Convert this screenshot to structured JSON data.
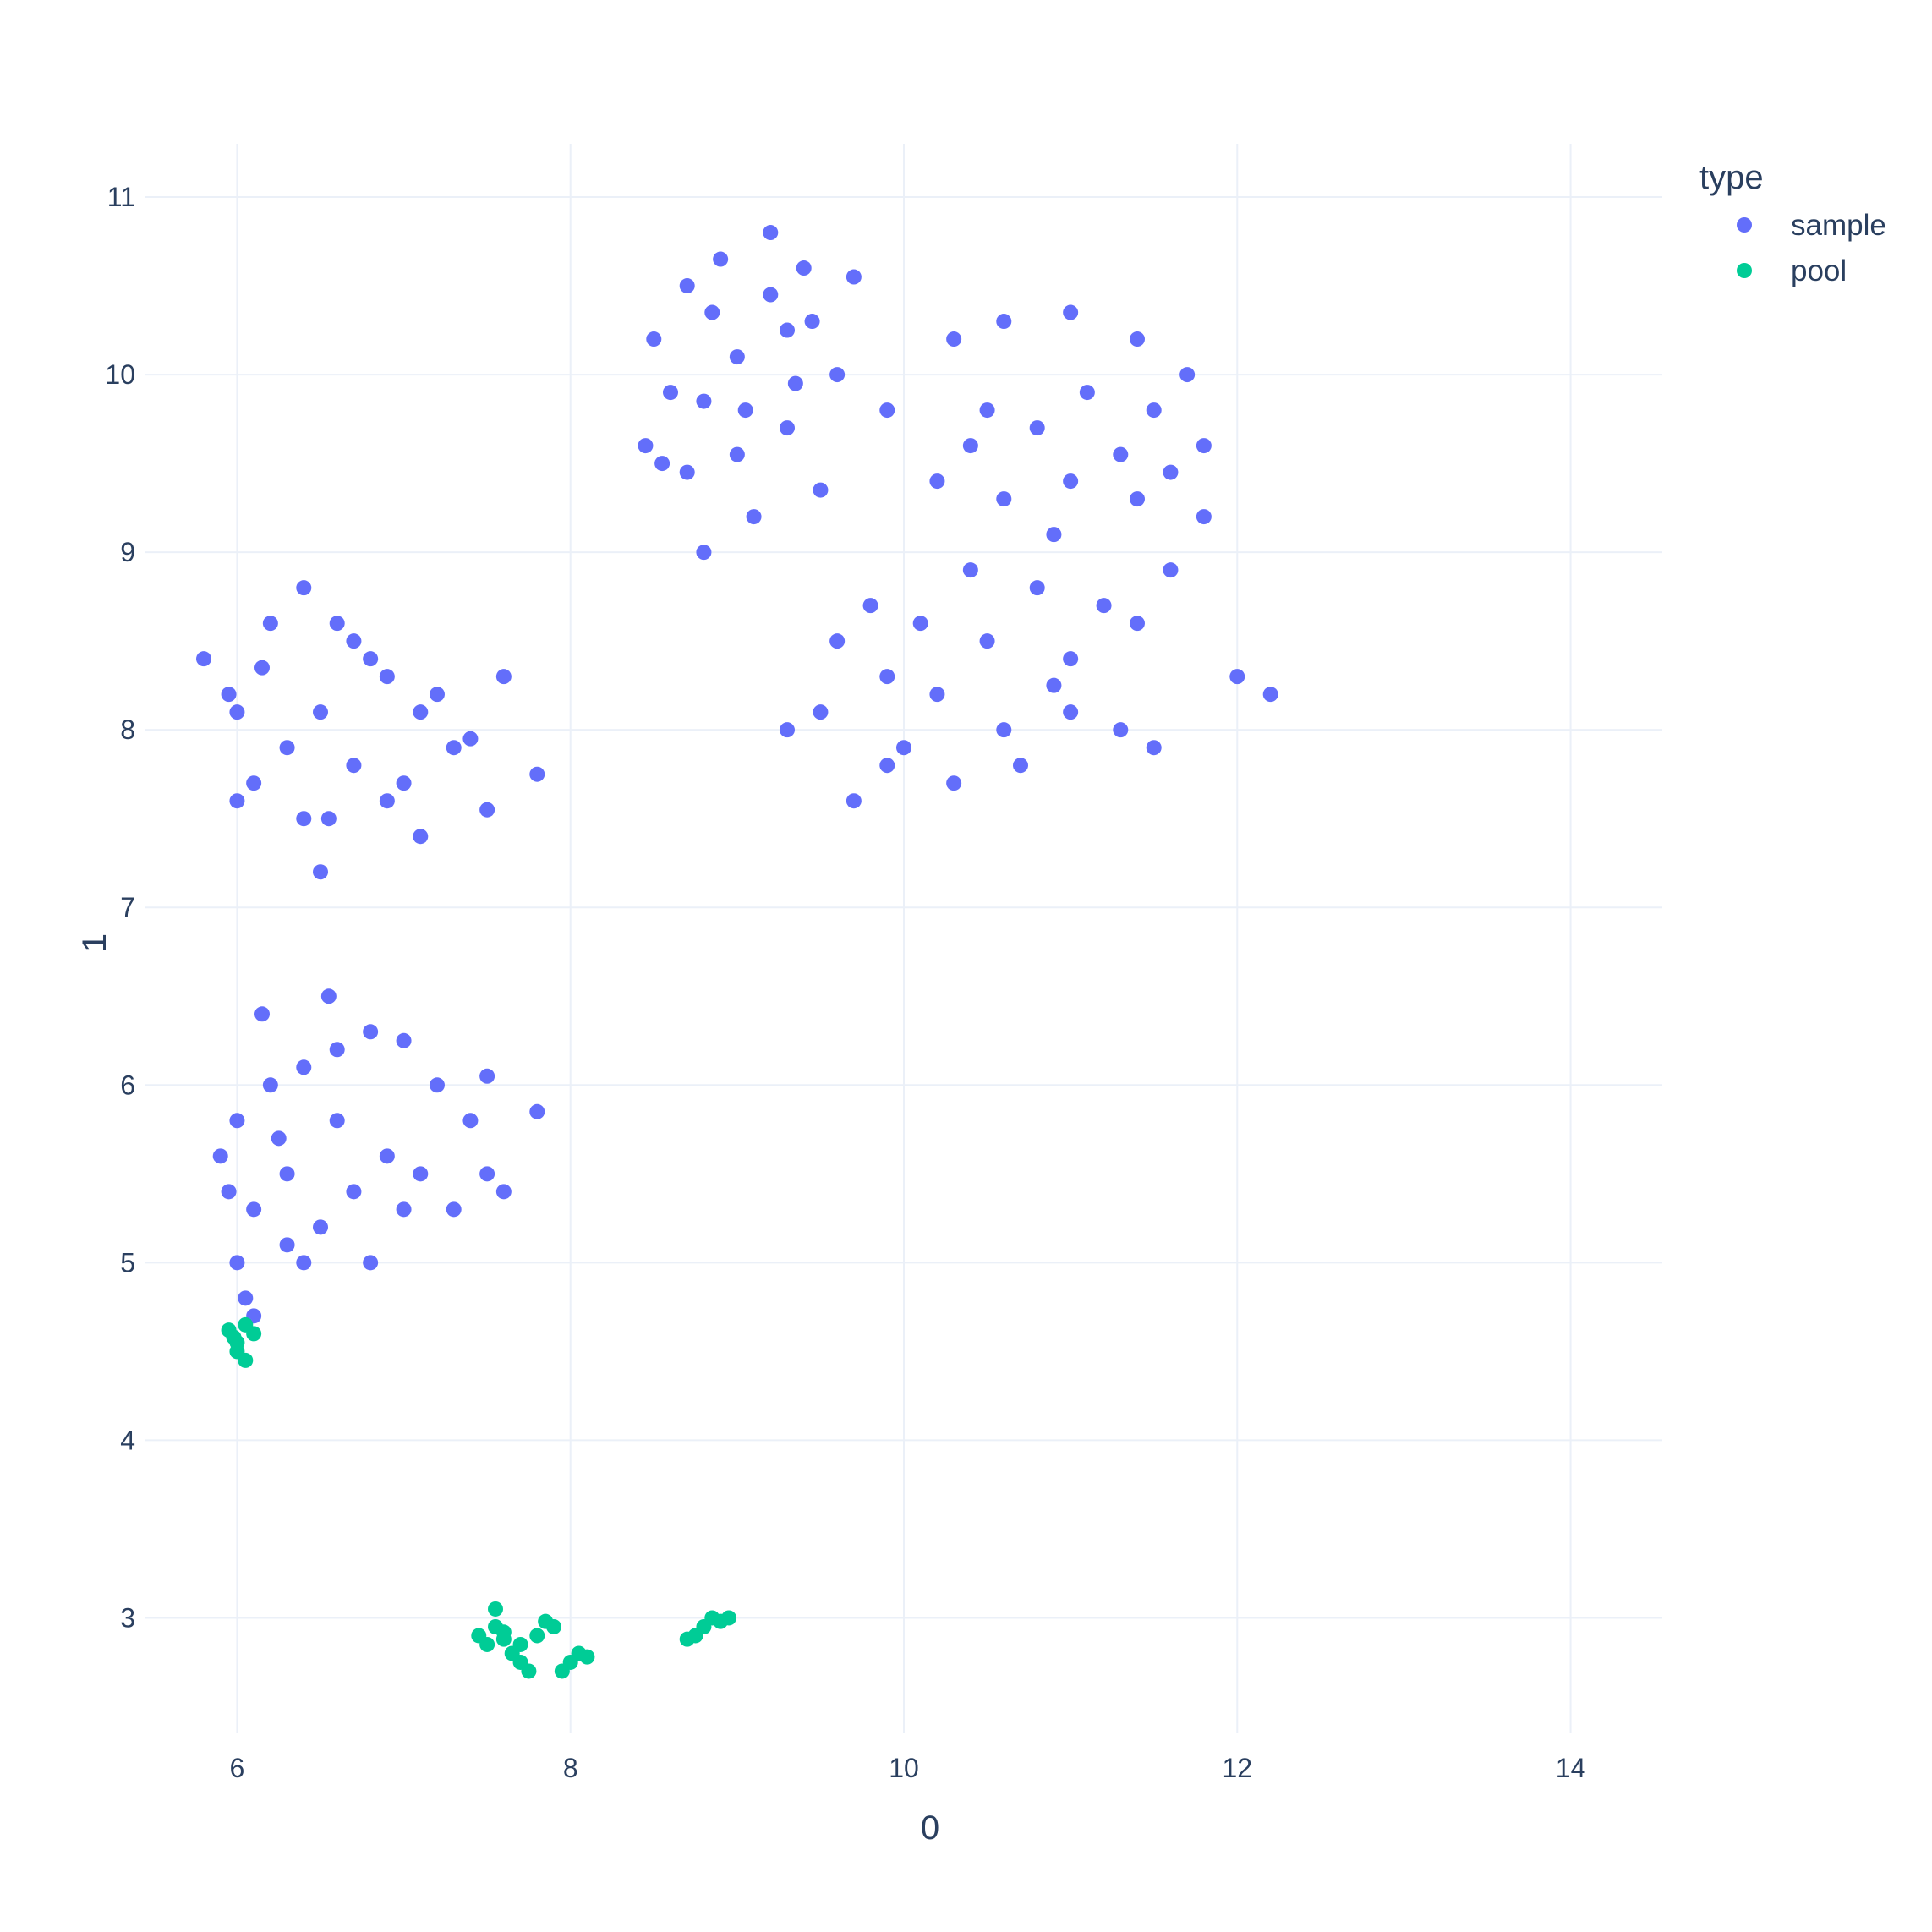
{
  "chart_data": {
    "type": "scatter",
    "xlabel": "0",
    "ylabel": "1",
    "xlim": [
      5.45,
      14.55
    ],
    "ylim": [
      2.35,
      11.3
    ],
    "xticks": [
      6,
      8,
      10,
      12,
      14
    ],
    "yticks": [
      3,
      4,
      5,
      6,
      7,
      8,
      9,
      10,
      11
    ],
    "grid": true,
    "legend": {
      "title": "type",
      "position": "top-right"
    },
    "series": [
      {
        "name": "sample",
        "color": "#636efa",
        "points": [
          [
            8.5,
            10.2
          ],
          [
            8.7,
            10.5
          ],
          [
            8.9,
            10.65
          ],
          [
            9.2,
            10.8
          ],
          [
            9.4,
            10.6
          ],
          [
            9.7,
            10.55
          ],
          [
            8.6,
            9.9
          ],
          [
            8.8,
            9.85
          ],
          [
            9.0,
            10.1
          ],
          [
            9.3,
            10.25
          ],
          [
            9.6,
            10.0
          ],
          [
            8.45,
            9.6
          ],
          [
            8.7,
            9.45
          ],
          [
            9.0,
            9.55
          ],
          [
            9.3,
            9.7
          ],
          [
            9.1,
            9.2
          ],
          [
            8.8,
            9.0
          ],
          [
            9.5,
            9.35
          ],
          [
            9.9,
            9.8
          ],
          [
            9.2,
            10.45
          ],
          [
            8.55,
            9.5
          ],
          [
            9.45,
            10.3
          ],
          [
            8.85,
            10.35
          ],
          [
            9.05,
            9.8
          ],
          [
            9.35,
            9.95
          ],
          [
            10.3,
            10.2
          ],
          [
            10.6,
            10.3
          ],
          [
            11.0,
            10.35
          ],
          [
            11.4,
            10.2
          ],
          [
            11.7,
            10.0
          ],
          [
            11.8,
            9.6
          ],
          [
            10.5,
            9.8
          ],
          [
            10.8,
            9.7
          ],
          [
            11.1,
            9.9
          ],
          [
            11.5,
            9.8
          ],
          [
            10.2,
            9.4
          ],
          [
            10.6,
            9.3
          ],
          [
            11.0,
            9.4
          ],
          [
            11.4,
            9.3
          ],
          [
            11.8,
            9.2
          ],
          [
            10.4,
            8.9
          ],
          [
            10.8,
            8.8
          ],
          [
            11.2,
            8.7
          ],
          [
            11.6,
            8.9
          ],
          [
            10.1,
            8.6
          ],
          [
            10.5,
            8.5
          ],
          [
            11.0,
            8.4
          ],
          [
            11.4,
            8.6
          ],
          [
            10.2,
            8.2
          ],
          [
            10.6,
            8.0
          ],
          [
            11.0,
            8.1
          ],
          [
            10.0,
            7.9
          ],
          [
            10.3,
            7.7
          ],
          [
            9.7,
            7.6
          ],
          [
            9.9,
            7.8
          ],
          [
            10.7,
            7.8
          ],
          [
            11.3,
            8.0
          ],
          [
            11.5,
            7.9
          ],
          [
            9.5,
            8.1
          ],
          [
            9.3,
            8.0
          ],
          [
            9.6,
            8.5
          ],
          [
            9.8,
            8.7
          ],
          [
            12.0,
            8.3
          ],
          [
            12.2,
            8.2
          ],
          [
            10.9,
            9.1
          ],
          [
            11.3,
            9.55
          ],
          [
            10.4,
            9.6
          ],
          [
            11.6,
            9.45
          ],
          [
            9.9,
            8.3
          ],
          [
            10.9,
            8.25
          ],
          [
            5.8,
            8.4
          ],
          [
            6.0,
            8.1
          ],
          [
            6.2,
            8.6
          ],
          [
            6.4,
            8.8
          ],
          [
            6.6,
            8.6
          ],
          [
            6.9,
            8.3
          ],
          [
            7.1,
            8.1
          ],
          [
            7.3,
            7.9
          ],
          [
            7.5,
            7.55
          ],
          [
            6.1,
            7.7
          ],
          [
            6.3,
            7.9
          ],
          [
            6.5,
            8.1
          ],
          [
            6.7,
            7.8
          ],
          [
            6.9,
            7.6
          ],
          [
            7.1,
            7.4
          ],
          [
            6.0,
            7.6
          ],
          [
            6.4,
            7.5
          ],
          [
            6.8,
            8.4
          ],
          [
            7.2,
            8.2
          ],
          [
            7.4,
            7.95
          ],
          [
            6.55,
            7.5
          ],
          [
            7.0,
            7.7
          ],
          [
            7.6,
            8.3
          ],
          [
            7.8,
            7.75
          ],
          [
            6.5,
            7.2
          ],
          [
            5.95,
            8.2
          ],
          [
            6.15,
            8.35
          ],
          [
            6.7,
            8.5
          ],
          [
            5.9,
            5.6
          ],
          [
            6.0,
            5.8
          ],
          [
            6.2,
            6.0
          ],
          [
            6.4,
            6.1
          ],
          [
            6.6,
            6.2
          ],
          [
            6.8,
            6.3
          ],
          [
            7.0,
            6.25
          ],
          [
            7.2,
            6.0
          ],
          [
            7.4,
            5.8
          ],
          [
            7.5,
            5.5
          ],
          [
            6.1,
            5.3
          ],
          [
            6.3,
            5.1
          ],
          [
            6.5,
            5.2
          ],
          [
            6.7,
            5.4
          ],
          [
            6.9,
            5.6
          ],
          [
            7.1,
            5.5
          ],
          [
            7.3,
            5.3
          ],
          [
            7.6,
            5.4
          ],
          [
            6.0,
            5.0
          ],
          [
            6.05,
            4.8
          ],
          [
            6.1,
            4.7
          ],
          [
            6.4,
            5.0
          ],
          [
            6.8,
            5.0
          ],
          [
            7.0,
            5.3
          ],
          [
            6.6,
            5.8
          ],
          [
            6.3,
            5.5
          ],
          [
            7.5,
            6.05
          ],
          [
            7.8,
            5.85
          ],
          [
            6.55,
            6.5
          ],
          [
            6.15,
            6.4
          ],
          [
            5.95,
            5.4
          ],
          [
            6.25,
            5.7
          ]
        ]
      },
      {
        "name": "pool",
        "color": "#00cc96",
        "points": [
          [
            5.95,
            4.62
          ],
          [
            6.0,
            4.55
          ],
          [
            6.05,
            4.65
          ],
          [
            6.1,
            4.6
          ],
          [
            6.0,
            4.5
          ],
          [
            6.05,
            4.45
          ],
          [
            5.98,
            4.58
          ],
          [
            7.45,
            2.9
          ],
          [
            7.5,
            2.85
          ],
          [
            7.55,
            2.95
          ],
          [
            7.6,
            2.88
          ],
          [
            7.65,
            2.8
          ],
          [
            7.7,
            2.75
          ],
          [
            7.75,
            2.7
          ],
          [
            7.8,
            2.9
          ],
          [
            7.85,
            2.98
          ],
          [
            7.9,
            2.95
          ],
          [
            7.95,
            2.7
          ],
          [
            8.0,
            2.75
          ],
          [
            8.05,
            2.8
          ],
          [
            8.1,
            2.78
          ],
          [
            7.55,
            3.05
          ],
          [
            7.7,
            2.85
          ],
          [
            7.6,
            2.92
          ],
          [
            8.7,
            2.88
          ],
          [
            8.75,
            2.9
          ],
          [
            8.8,
            2.95
          ],
          [
            8.85,
            3.0
          ],
          [
            8.9,
            2.98
          ],
          [
            8.95,
            3.0
          ]
        ]
      }
    ]
  }
}
